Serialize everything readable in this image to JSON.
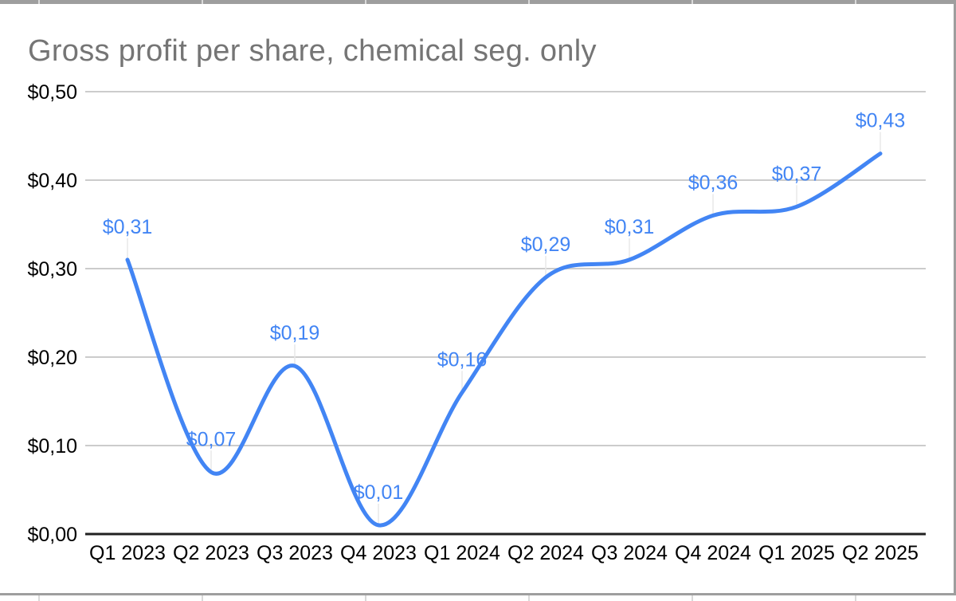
{
  "chart": {
    "title": "Gross profit per share, chemical seg. only"
  },
  "chart_data": {
    "type": "line",
    "smooth": true,
    "title": "Gross profit per share, chemical seg. only",
    "categories": [
      "Q1 2023",
      "Q2 2023",
      "Q3 2023",
      "Q4 2023",
      "Q1 2024",
      "Q2 2024",
      "Q3 2024",
      "Q4 2024",
      "Q1 2025",
      "Q2 2025"
    ],
    "values": [
      0.31,
      0.07,
      0.19,
      0.01,
      0.16,
      0.29,
      0.31,
      0.36,
      0.37,
      0.43
    ],
    "point_labels": [
      "$0,31",
      "$0,07",
      "$0,19",
      "$0,01",
      "$0,16",
      "$0,29",
      "$0,31",
      "$0,36",
      "$0,37",
      "$0,43"
    ],
    "y_ticks": [
      {
        "value": 0.0,
        "label": "$0,00"
      },
      {
        "value": 0.1,
        "label": "$0,10"
      },
      {
        "value": 0.2,
        "label": "$0,20"
      },
      {
        "value": 0.3,
        "label": "$0,30"
      },
      {
        "value": 0.4,
        "label": "$0,40"
      },
      {
        "value": 0.5,
        "label": "$0,50"
      }
    ],
    "ylim": [
      0,
      0.5
    ],
    "xlabel": "",
    "ylabel": "",
    "legend": "none",
    "grid": true,
    "series_color": "#4285f4",
    "data_label_color": "#4285f4",
    "grid_color": "#cccccc",
    "axis_line_color": "#212121",
    "tick_label_color": "#000000",
    "callout_color": "#e8e8e8",
    "title_color": "#757575"
  }
}
